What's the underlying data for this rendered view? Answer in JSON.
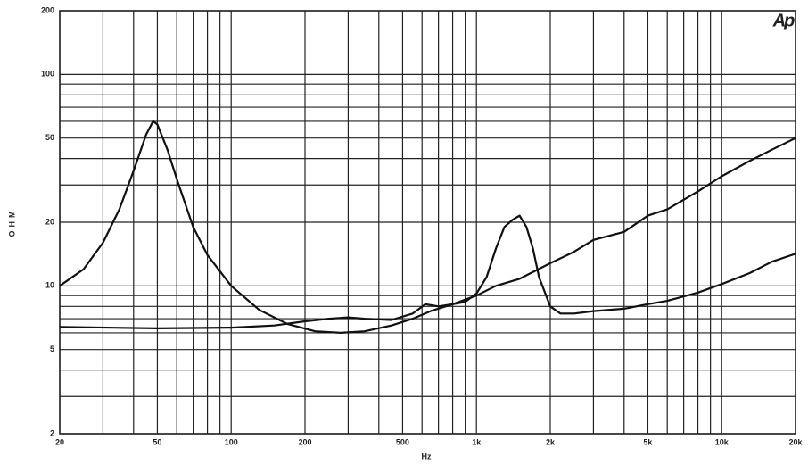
{
  "chart_data": {
    "type": "line",
    "x_label": "Hz",
    "y_label": "OHM",
    "logo": "Ap",
    "xscale": "log",
    "yscale": "log",
    "grid": true,
    "color": "#111111",
    "xlim": [
      20,
      20000
    ],
    "ylim": [
      2,
      200
    ],
    "xticks": [
      20,
      50,
      100,
      200,
      500,
      {
        "value": 1000,
        "label": "1k"
      },
      {
        "value": 2000,
        "label": "2k"
      },
      {
        "value": 5000,
        "label": "5k"
      },
      {
        "value": 10000,
        "label": "10k"
      },
      {
        "value": 20000,
        "label": "20k"
      }
    ],
    "xgrid_minor": [
      30,
      40,
      60,
      70,
      80,
      90,
      300,
      400,
      600,
      700,
      800,
      900,
      3000,
      4000,
      6000,
      7000,
      8000,
      9000
    ],
    "yticks": [
      2,
      5,
      10,
      20,
      50,
      100,
      200
    ],
    "ygrid_minor": [
      3,
      4,
      6,
      7,
      8,
      9,
      30,
      40,
      60,
      70,
      80,
      90
    ],
    "series": [
      {
        "color": "#111111",
        "x": [
          20,
          25,
          30,
          35,
          40,
          45,
          48,
          50,
          55,
          60,
          70,
          80,
          100,
          130,
          170,
          220,
          280,
          350,
          450,
          550,
          650,
          800,
          1000,
          1200,
          1500,
          2000,
          2500,
          3000,
          4000,
          5000,
          6000,
          8000,
          10000,
          13000,
          16000,
          20000
        ],
        "values": [
          10,
          12,
          16,
          23,
          35,
          52,
          60,
          58,
          44,
          32,
          19,
          14,
          10,
          7.7,
          6.6,
          6.1,
          6.0,
          6.1,
          6.5,
          7.0,
          7.6,
          8.2,
          9.0,
          10,
          10.8,
          12.8,
          14.5,
          16.5,
          18,
          21.5,
          23,
          28,
          33,
          39,
          44,
          50
        ]
      },
      {
        "color": "#111111",
        "x": [
          20,
          50,
          100,
          150,
          200,
          250,
          300,
          350,
          450,
          550,
          620,
          700,
          800,
          900,
          1000,
          1100,
          1200,
          1300,
          1400,
          1500,
          1600,
          1700,
          1800,
          2000,
          2200,
          2500,
          3000,
          4000,
          5000,
          6000,
          8000,
          10000,
          13000,
          16000,
          20000
        ],
        "values": [
          6.4,
          6.3,
          6.35,
          6.5,
          6.8,
          7.0,
          7.1,
          7.0,
          6.9,
          7.4,
          8.2,
          8.0,
          8.2,
          8.4,
          9.2,
          11,
          15,
          19,
          20.5,
          21.5,
          19,
          15,
          11,
          8,
          7.4,
          7.4,
          7.6,
          7.8,
          8.2,
          8.5,
          9.3,
          10.2,
          11.5,
          13,
          14.2
        ]
      }
    ]
  }
}
